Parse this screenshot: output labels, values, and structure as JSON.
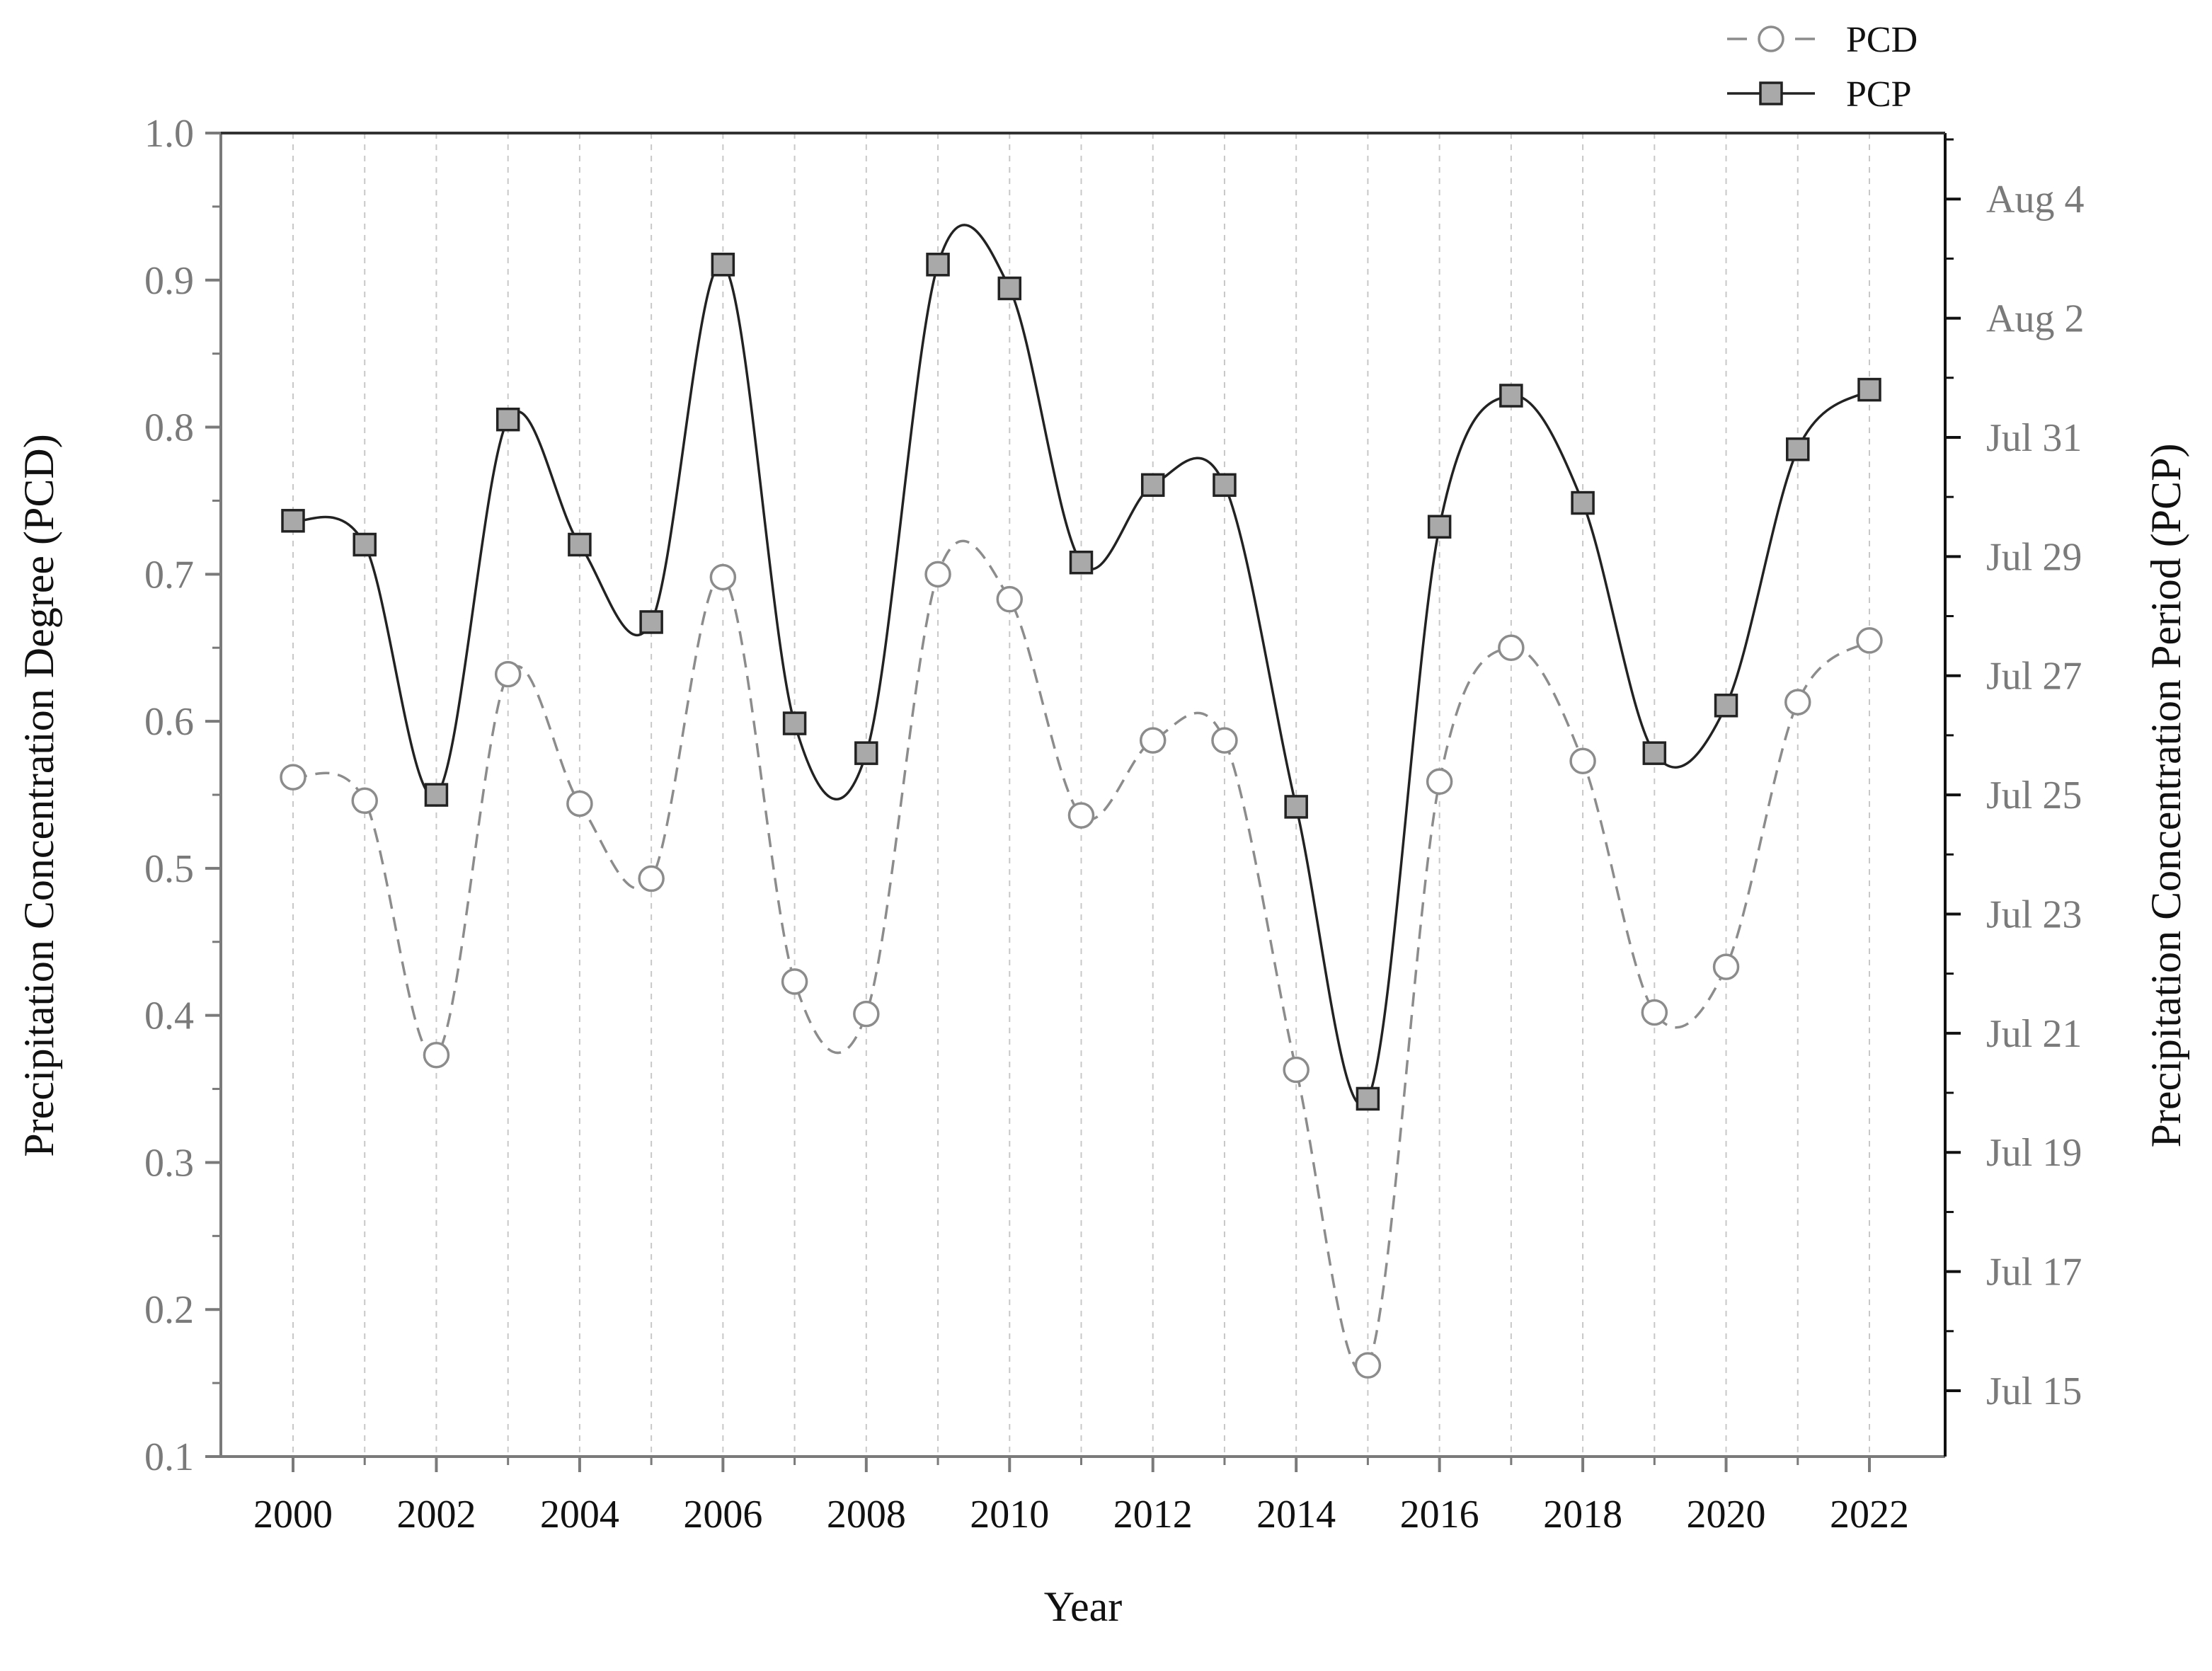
{
  "chart_data": {
    "type": "line",
    "xlabel": "Year",
    "ylabel_left": "Precipitation Concentration Degree (PCD)",
    "ylabel_right": "Precipitation Concentration Period (PCP)",
    "x": [
      2000,
      2001,
      2002,
      2003,
      2004,
      2005,
      2006,
      2007,
      2008,
      2009,
      2010,
      2011,
      2012,
      2013,
      2014,
      2015,
      2016,
      2017,
      2018,
      2019,
      2020,
      2021,
      2022
    ],
    "x_tick_labels": [
      "2000",
      "2002",
      "2004",
      "2006",
      "2008",
      "2010",
      "2012",
      "2014",
      "2016",
      "2018",
      "2020",
      "2022"
    ],
    "y_left_ticks": [
      "0.1",
      "0.2",
      "0.3",
      "0.4",
      "0.5",
      "0.6",
      "0.7",
      "0.8",
      "0.9",
      "1.0"
    ],
    "y_left_range": [
      0.1,
      1.0
    ],
    "y_right_ticks": [
      "Jul 15",
      "Jul 17",
      "Jul 19",
      "Jul 21",
      "Jul 23",
      "Jul 25",
      "Jul 27",
      "Jul 29",
      "Jul 31",
      "Aug 2",
      "Aug 4"
    ],
    "y_right_range": [
      "Jul 15",
      "Aug 5"
    ],
    "grid": "vertical dashed",
    "legend_position": "top-right",
    "series": [
      {
        "name": "PCD",
        "axis": "left",
        "style": "dashed line, open circle markers",
        "color": "#8c8c8c",
        "values": [
          0.562,
          0.546,
          0.373,
          0.632,
          0.544,
          0.493,
          0.698,
          0.423,
          0.401,
          0.7,
          0.683,
          0.536,
          0.587,
          0.587,
          0.363,
          0.162,
          0.559,
          0.65,
          0.573,
          0.402,
          0.433,
          0.613,
          0.655
        ]
      },
      {
        "name": "PCP",
        "axis": "right",
        "style": "solid line, filled square markers",
        "color": "#222222",
        "marker_fill": "#a9a9a9",
        "values": [
          "Jul 29.6",
          "Jul 29.2",
          "Jul 25.0",
          "Jul 31.3",
          "Jul 29.2",
          "Jul 27.9",
          "Aug 2.9",
          "Jul 26.2",
          "Jul 25.7",
          "Aug 2.9",
          "Aug 2.5",
          "Jul 28.9",
          "Jul 30.2",
          "Jul 30.2",
          "Jul 24.8",
          "Jul 19.9",
          "Jul 29.5",
          "Jul 31.7",
          "Jul 29.9",
          "Jul 25.7",
          "Jul 26.5",
          "Jul 30.8",
          "Jul 31.8"
        ]
      }
    ]
  }
}
